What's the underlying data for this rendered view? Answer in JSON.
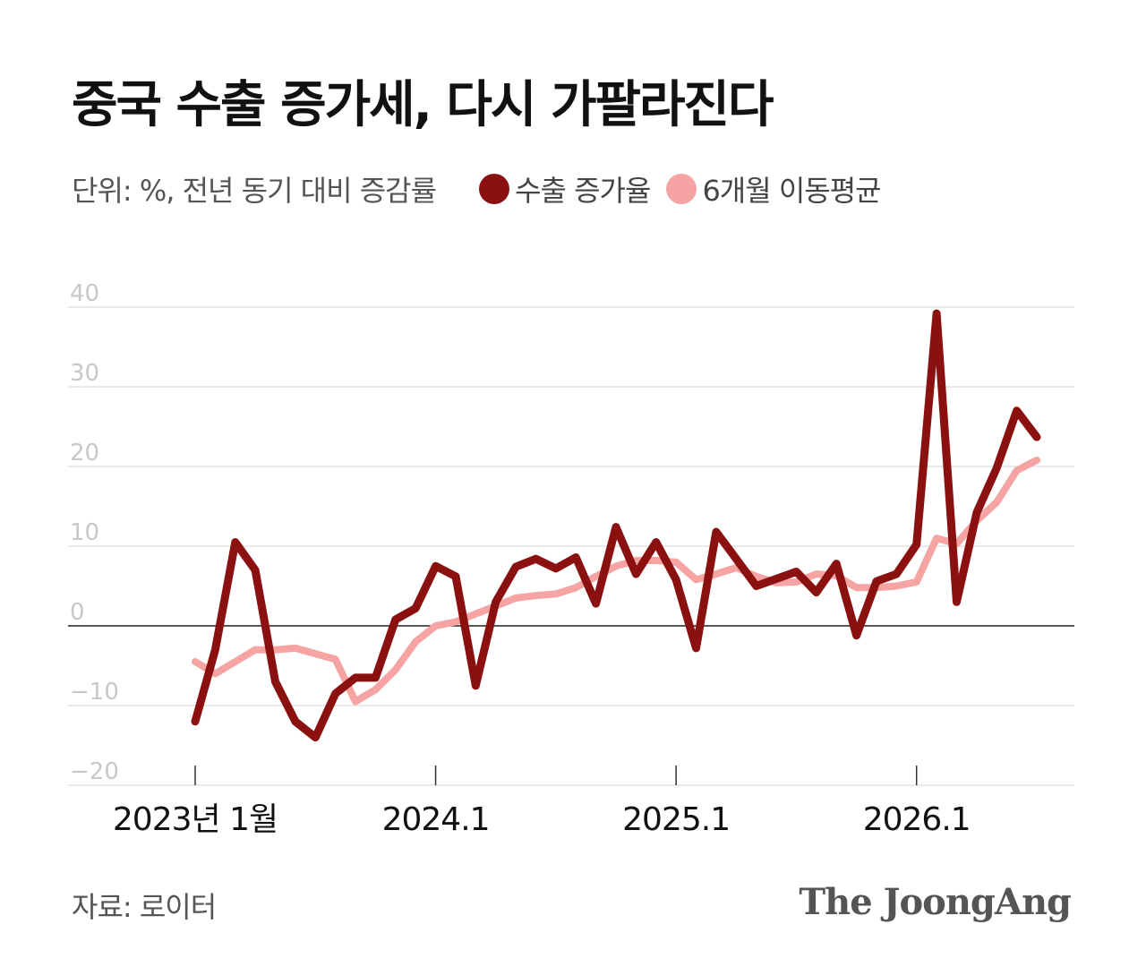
{
  "title": "중국 수출 증가세, 다시 가팔라진다",
  "unit_label": "단위: %, 전년 동기 대비 증감률",
  "legend": [
    {
      "label": "수출 증가율",
      "color": "#8b1010"
    },
    {
      "label": "6개월 이동평균",
      "color": "#f5a3a3"
    }
  ],
  "source": "자료: 로이터",
  "brand": "The JoongAng",
  "chart_data": {
    "type": "line",
    "ylim": [
      -20,
      40
    ],
    "yticks": [
      40,
      30,
      20,
      10,
      0,
      -10,
      -20
    ],
    "ytick_labels": [
      "40",
      "30",
      "20",
      "10",
      "0",
      "−10",
      "−20"
    ],
    "x_ticks": [
      {
        "index": 0,
        "label": "2023년 1월"
      },
      {
        "index": 12,
        "label": "2024.1"
      },
      {
        "index": 24,
        "label": "2025.1"
      },
      {
        "index": 36,
        "label": "2026.1"
      }
    ],
    "grid": true,
    "legend_position": "top",
    "series": [
      {
        "name": "수출 증가율",
        "color": "#8b1010",
        "values": [
          -12,
          -3,
          10.5,
          7,
          -7,
          -12,
          -14,
          -8.5,
          -6.5,
          -6.5,
          0.8,
          2.2,
          7.5,
          6.2,
          -7.5,
          3,
          7.4,
          8.4,
          7.2,
          8.6,
          2.8,
          12.4,
          6.5,
          10.5,
          5.8,
          -2.8,
          11.8,
          8.4,
          5,
          5.9,
          6.8,
          4.2,
          7.8,
          -1.2,
          5.6,
          6.5,
          10.2,
          39.2,
          3,
          14.2,
          19.8,
          27,
          23.7
        ]
      },
      {
        "name": "6개월 이동평균",
        "color": "#f5a3a3",
        "values": [
          -4.5,
          -6,
          -4.5,
          -3,
          -3,
          -2.8,
          -3.5,
          -4.2,
          -9.5,
          -8,
          -5.5,
          -2,
          0,
          0.5,
          1.5,
          2.5,
          3.5,
          3.8,
          4,
          4.8,
          6.2,
          7.5,
          8.2,
          8.2,
          8,
          5.8,
          6.5,
          7.3,
          6.2,
          5.4,
          5.5,
          6.5,
          6.3,
          4.8,
          4.8,
          5,
          5.5,
          11,
          10.3,
          13.2,
          15.5,
          19.5,
          20.8
        ]
      }
    ]
  }
}
